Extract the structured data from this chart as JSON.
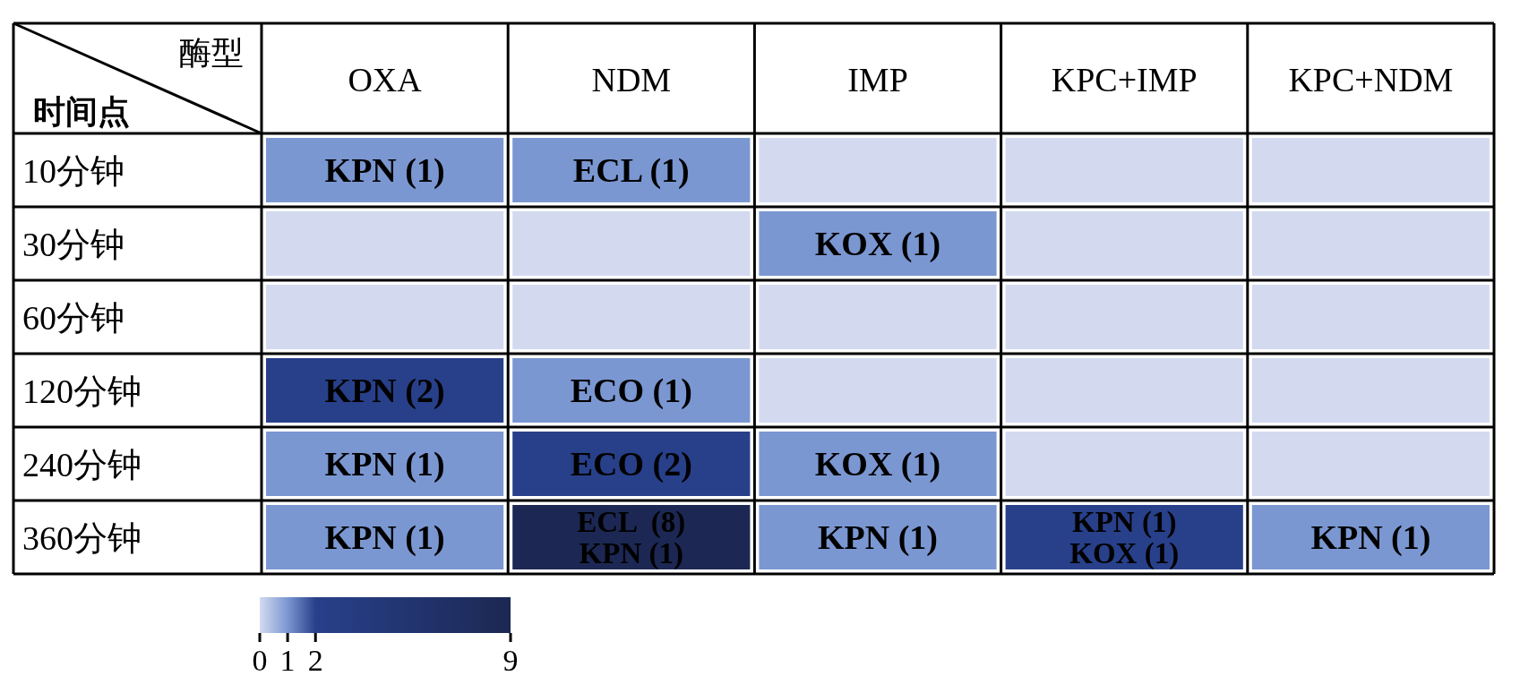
{
  "chart_data": {
    "type": "heatmap",
    "xlabel": "酶型",
    "ylabel": "时间点",
    "categories": [
      "OXA",
      "NDM",
      "IMP",
      "KPC+IMP",
      "KPC+NDM"
    ],
    "y_categories": [
      "10分钟",
      "30分钟",
      "60分钟",
      "120分钟",
      "240分钟",
      "360分钟"
    ],
    "cells": [
      [
        1,
        1,
        0,
        0,
        0
      ],
      [
        0,
        0,
        1,
        0,
        0
      ],
      [
        0,
        0,
        0,
        0,
        0
      ],
      [
        2,
        1,
        0,
        0,
        0
      ],
      [
        1,
        2,
        1,
        0,
        0
      ],
      [
        1,
        9,
        1,
        2,
        1
      ]
    ],
    "cell_labels": [
      [
        "KPN (1)",
        "ECL (1)",
        null,
        null,
        null
      ],
      [
        null,
        null,
        "KOX (1)",
        null,
        null
      ],
      [
        null,
        null,
        null,
        null,
        null
      ],
      [
        "KPN (2)",
        "ECO (1)",
        null,
        null,
        null
      ],
      [
        "KPN (1)",
        "ECO (2)",
        "KOX (1)",
        null,
        null
      ],
      [
        "KPN (1)",
        "ECL  (8)\nKPN (1)",
        "KPN (1)",
        "KPN (1)\nKOX (1)",
        "KPN (1)"
      ]
    ],
    "clim": [
      0,
      9
    ],
    "cticks": [
      0,
      1,
      2,
      9
    ]
  }
}
